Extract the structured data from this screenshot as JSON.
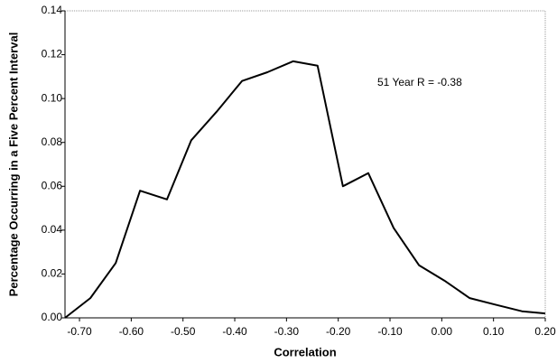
{
  "chart_data": {
    "type": "line",
    "x_label": "Correlation",
    "y_label": "Percentage Occurring in a Five Percent Interval",
    "annotation": "51 Year R = -0.38",
    "x": [
      -0.728,
      -0.679,
      -0.63,
      -0.583,
      -0.531,
      -0.484,
      -0.435,
      -0.386,
      -0.337,
      -0.287,
      -0.24,
      -0.191,
      -0.142,
      -0.093,
      -0.044,
      0.005,
      0.054,
      0.104,
      0.155,
      0.2
    ],
    "series": [
      {
        "color": "#000000",
        "values": [
          0,
          0.009,
          0.025,
          0.058,
          0.054,
          0.081,
          0.094,
          0.108,
          0.112,
          0.117,
          0.115,
          0.06,
          0.066,
          0.041,
          0.024,
          0.017,
          0.009,
          0.006,
          0.003,
          0.002
        ]
      }
    ],
    "xlim": [
      -0.728,
      0.2
    ],
    "ylim": [
      0,
      0.14
    ],
    "xticks": [
      {
        "value": -0.7,
        "label": "-0.70"
      },
      {
        "value": -0.6,
        "label": "-0.60"
      },
      {
        "value": -0.5,
        "label": "-0.50"
      },
      {
        "value": -0.4,
        "label": "-0.40"
      },
      {
        "value": -0.3,
        "label": "-0.30"
      },
      {
        "value": -0.2,
        "label": "-0.20"
      },
      {
        "value": -0.1,
        "label": "-0.10"
      },
      {
        "value": 0,
        "label": "0.00"
      },
      {
        "value": 0.1,
        "label": "0.10"
      },
      {
        "value": 0.2,
        "label": "0.20"
      }
    ],
    "yticks": [
      {
        "value": 0,
        "label": "0.00"
      },
      {
        "value": 0.02,
        "label": "0.02"
      },
      {
        "value": 0.04,
        "label": "0.04"
      },
      {
        "value": 0.06,
        "label": "0.06"
      },
      {
        "value": 0.08,
        "label": "0.08"
      },
      {
        "value": 0.1,
        "label": "0.10"
      },
      {
        "value": 0.12,
        "label": "0.12"
      },
      {
        "value": 0.14,
        "label": "0.14"
      }
    ]
  }
}
